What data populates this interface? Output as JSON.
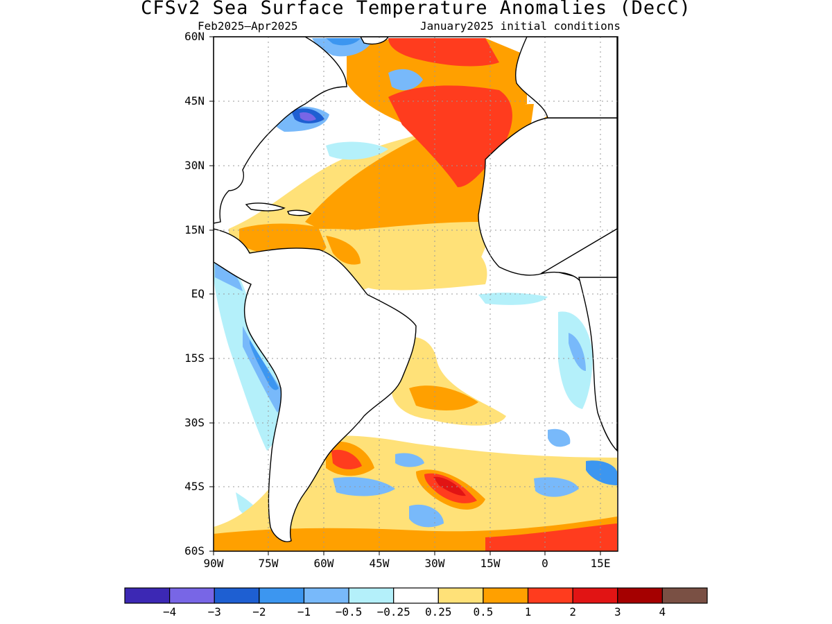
{
  "title": "CFSv2 Sea Surface Temperature Anomalies (DecC)",
  "period": "Feb2025–Apr2025",
  "init": "January2025 initial conditions",
  "map": {
    "lon_range": [
      -90,
      20
    ],
    "lat_range": [
      -60,
      60
    ],
    "lat_ticks": [
      "60N",
      "45N",
      "30N",
      "15N",
      "EQ",
      "15S",
      "30S",
      "45S",
      "60S"
    ],
    "lon_ticks": [
      "90W",
      "75W",
      "60W",
      "45W",
      "30W",
      "15W",
      "0",
      "15E"
    ],
    "grid": "dotted"
  },
  "colorbar": {
    "colors": [
      "#3c28b4",
      "#7866e6",
      "#1e5fd2",
      "#3c96f0",
      "#78b9fa",
      "#b4f0fa",
      "#ffffff",
      "#ffe178",
      "#ffa000",
      "#ff3c1e",
      "#e11414",
      "#a50000",
      "#7a5044"
    ],
    "labels": [
      "−4",
      "−3",
      "−2",
      "−1",
      "−0.5",
      "−0.25",
      "0.25",
      "0.5",
      "1",
      "2",
      "3",
      "4"
    ]
  }
}
